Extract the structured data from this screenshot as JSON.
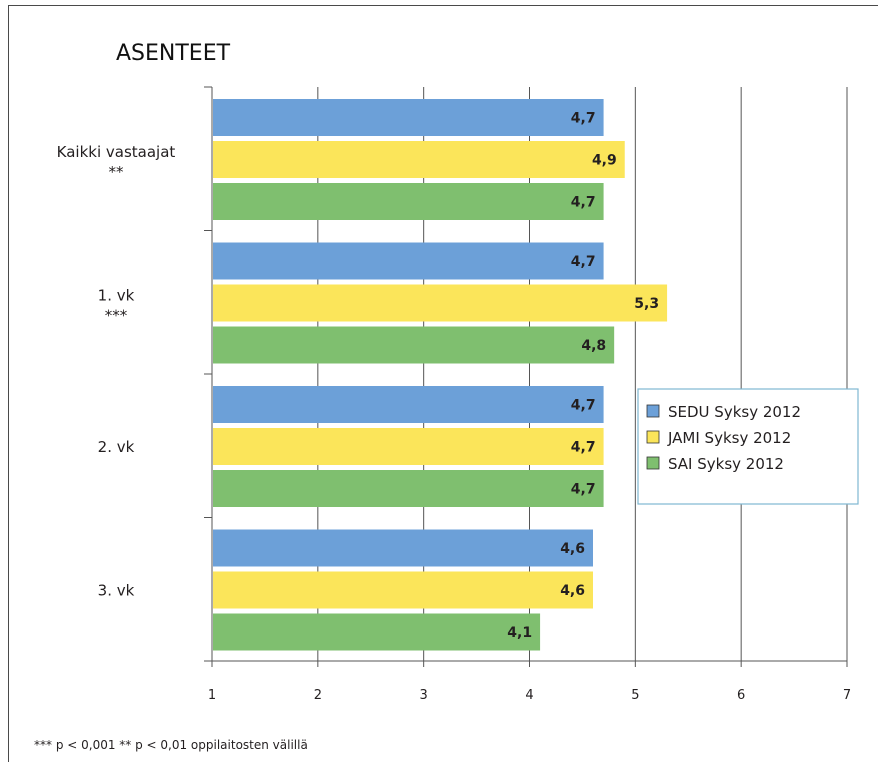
{
  "chart_data": {
    "type": "bar",
    "orientation": "horizontal",
    "title": "ASENTEET",
    "categories": [
      "Kaikki vastaajat",
      "1. vk",
      "2. vk",
      "3. vk"
    ],
    "significance": [
      "**",
      "***",
      "",
      ""
    ],
    "series": [
      {
        "name": "SEDU Syksy 2012",
        "color": "#6ca0d8",
        "values": [
          4.7,
          4.7,
          4.7,
          4.6
        ],
        "labels": [
          "4,7",
          "4,7",
          "4,7",
          "4,6"
        ]
      },
      {
        "name": "JAMI Syksy 2012",
        "color": "#fbe55a",
        "values": [
          4.9,
          5.3,
          4.7,
          4.6
        ],
        "labels": [
          "4,9",
          "5,3",
          "4,7",
          "4,6"
        ]
      },
      {
        "name": "SAI Syksy 2012",
        "color": "#7fbf6f",
        "values": [
          4.7,
          4.8,
          4.7,
          4.1
        ],
        "labels": [
          "4,7",
          "4,8",
          "4,7",
          "4,1"
        ]
      }
    ],
    "xlim": [
      1,
      7
    ],
    "xticks": [
      1,
      2,
      3,
      4,
      5,
      6,
      7
    ],
    "xlabel": "",
    "ylabel": "",
    "grid": "vertical",
    "legend_position": "right",
    "footnote": "*** p < 0,001 ** p < 0,01 oppilaitosten välillä"
  }
}
